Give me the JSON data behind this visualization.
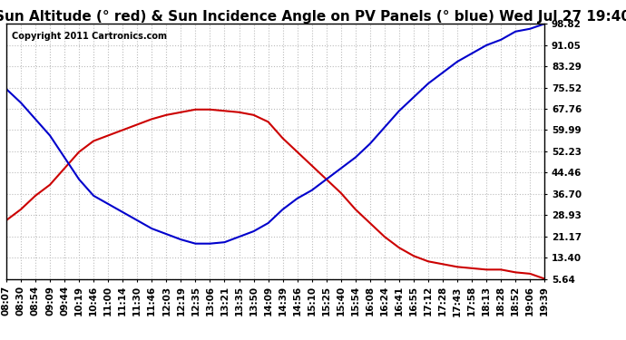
{
  "title": "Sun Altitude (° red) & Sun Incidence Angle on PV Panels (° blue) Wed Jul 27 19:40",
  "copyright": "Copyright 2011 Cartronics.com",
  "background_color": "#ffffff",
  "plot_bg_color": "#ffffff",
  "grid_color": "#bbbbbb",
  "y_ticks": [
    5.64,
    13.4,
    21.17,
    28.93,
    36.7,
    44.46,
    52.23,
    59.99,
    67.76,
    75.52,
    83.29,
    91.05,
    98.82
  ],
  "ylim": [
    5.64,
    98.82
  ],
  "x_labels": [
    "08:07",
    "08:30",
    "08:54",
    "09:09",
    "09:44",
    "10:19",
    "10:46",
    "11:00",
    "11:14",
    "11:30",
    "11:46",
    "12:03",
    "12:19",
    "12:35",
    "13:06",
    "13:21",
    "13:35",
    "13:50",
    "14:09",
    "14:39",
    "14:56",
    "15:10",
    "15:25",
    "15:40",
    "15:54",
    "16:08",
    "16:24",
    "16:41",
    "16:55",
    "17:12",
    "17:28",
    "17:43",
    "17:58",
    "18:13",
    "18:28",
    "18:52",
    "19:06",
    "19:39"
  ],
  "red_values": [
    27,
    31,
    36,
    40,
    46,
    52,
    56,
    58,
    60,
    62,
    64,
    65.5,
    66.5,
    67.5,
    67.5,
    67.0,
    66.5,
    65.5,
    63,
    57,
    52,
    47,
    42,
    37,
    31,
    26,
    21,
    17,
    14,
    12,
    11,
    10,
    9.5,
    9,
    9,
    8,
    7.5,
    5.64
  ],
  "blue_values": [
    75,
    70,
    64,
    58,
    50,
    42,
    36,
    33,
    30,
    27,
    24,
    22,
    20,
    18.5,
    18.5,
    19,
    21,
    23,
    26,
    31,
    35,
    38,
    42,
    46,
    50,
    55,
    61,
    67,
    72,
    77,
    81,
    85,
    88,
    91,
    93,
    96,
    97,
    98.82
  ],
  "red_color": "#cc0000",
  "blue_color": "#0000cc",
  "title_fontsize": 11,
  "tick_fontsize": 7.5,
  "copyright_fontsize": 7
}
